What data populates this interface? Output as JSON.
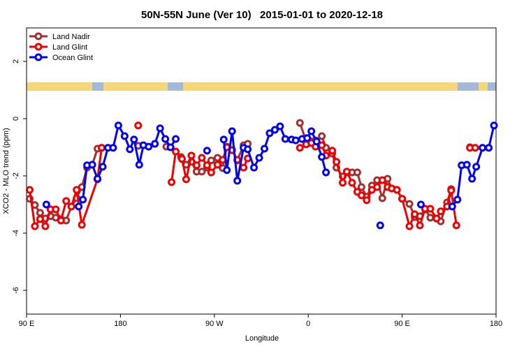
{
  "chart_data": {
    "type": "line",
    "title": "50N-55N June (Ver 10)   2015-01-01 to 2020-12-18",
    "x_label": "Longitude",
    "y_label": "XCO2 - MLO trend (ppm)",
    "xlim": [
      90,
      540
    ],
    "xticks": [
      {
        "value": 90,
        "label": "90 E"
      },
      180,
      {
        "value": 270,
        "label": "90 W"
      },
      {
        "value": 360,
        "label": "0"
      },
      {
        "value": 450,
        "label": "90 E"
      },
      180
    ],
    "ylim": [
      -6.83,
      3.17
    ],
    "yticks": [
      -6,
      -4,
      -2,
      0,
      2
    ],
    "legend": "top-left",
    "series": [
      {
        "name": "Land Nadir",
        "color": "#a0302f",
        "x": [
          93,
          98,
          103,
          108,
          113,
          118,
          123,
          128,
          133,
          138,
          143,
          148,
          153,
          158,
          162,
          null,
          197,
          null,
          224,
          null,
          238,
          243,
          248,
          253,
          258,
          263,
          267,
          273,
          278,
          282,
          287,
          292,
          298,
          302,
          null,
          352,
          357,
          363,
          367,
          373,
          377,
          383,
          387,
          393,
          397,
          402,
          407,
          411,
          416,
          421,
          426,
          431,
          436,
          440,
          445,
          450,
          457,
          462,
          467,
          472,
          477,
          483,
          487,
          493,
          497,
          null,
          515
        ],
        "values": [
          -2.8,
          -3.02,
          -3.29,
          -3.49,
          -3.41,
          -3.46,
          -3.51,
          -3.56,
          -3.07,
          -2.78,
          -2.39,
          -1.71,
          -1.61,
          -1.05,
          -1.02,
          null,
          -0.95,
          null,
          -0.98,
          null,
          -1.34,
          -1.61,
          -1.51,
          -1.85,
          -1.85,
          -1.71,
          -1.46,
          -1.37,
          -1.73,
          -0.98,
          -1.1,
          -1.46,
          -0.93,
          -0.88,
          null,
          -0.15,
          -0.68,
          -0.8,
          -0.76,
          -0.61,
          -1.02,
          -1.22,
          -1.71,
          -2.02,
          -1.88,
          -1.88,
          -1.88,
          -2.39,
          -2.73,
          -2.34,
          -2.15,
          -2.78,
          -2.1,
          -2.44,
          -2.49,
          -2.8,
          -2.98,
          -3.44,
          -3.41,
          -3.17,
          -3.46,
          -3.49,
          -3.59,
          -2.93,
          -2.46,
          null,
          -1.0
        ]
      },
      {
        "name": "Land Glint",
        "color": "#ee0000",
        "x": [
          93,
          98,
          103,
          108,
          113,
          118,
          123,
          128,
          133,
          138,
          143,
          158,
          162,
          null,
          197,
          null,
          229,
          233,
          239,
          243,
          248,
          253,
          258,
          263,
          267,
          273,
          278,
          282,
          287,
          292,
          298,
          302,
          null,
          352,
          358,
          363,
          367,
          373,
          377,
          383,
          387,
          393,
          397,
          402,
          407,
          411,
          416,
          421,
          426,
          431,
          436,
          440,
          445,
          450,
          457,
          462,
          467,
          472,
          477,
          483,
          487,
          493,
          497,
          502,
          null,
          515,
          520
        ],
        "values": [
          -2.49,
          -3.76,
          -3.51,
          -3.76,
          -3.17,
          -3.17,
          -3.56,
          -2.88,
          -3.07,
          -2.49,
          -3.71,
          -2.12,
          -1.02,
          null,
          -0.24,
          null,
          -2.22,
          -1.15,
          -1.41,
          -2.12,
          -1.29,
          -1.63,
          -1.37,
          -1.63,
          -1.88,
          -1.61,
          -1.44,
          -1.0,
          -1.1,
          -1.44,
          -1.71,
          -1.39,
          null,
          -1.02,
          -0.9,
          -0.85,
          -0.98,
          -0.93,
          -1.29,
          -1.12,
          -1.51,
          -2.24,
          -1.85,
          -2.24,
          -2.56,
          -2.68,
          -2.85,
          -2.49,
          -2.39,
          -2.15,
          -2.39,
          -2.44,
          -2.49,
          -2.8,
          -3.76,
          -3.34,
          -3.73,
          -3.15,
          -3.15,
          -3.49,
          -3.24,
          -3.07,
          -2.51,
          -3.73,
          null,
          -1.02,
          -1.02
        ]
      },
      {
        "name": "Ocean Glint",
        "color": "#0000ee",
        "x": [
          109,
          null,
          140,
          144,
          148,
          153,
          158,
          163,
          168,
          173,
          178,
          184,
          189,
          193,
          198,
          202,
          207,
          213,
          218,
          223,
          228,
          233,
          null,
          263,
          null,
          279,
          282,
          287,
          292,
          298,
          302,
          308,
          313,
          318,
          323,
          328,
          333,
          338,
          344,
          348,
          354,
          359,
          363,
          368,
          373,
          377,
          null,
          429,
          null,
          468,
          null,
          498,
          503,
          507,
          512,
          517,
          521,
          527,
          533,
          538
        ],
        "values": [
          -3.0,
          null,
          -3.07,
          -2.83,
          -1.63,
          -1.61,
          -2.1,
          -1.68,
          -1.02,
          -1.02,
          -0.24,
          -0.61,
          -1.07,
          -0.73,
          -1.61,
          -0.93,
          -0.98,
          -0.88,
          -0.34,
          -0.71,
          -1.0,
          -0.71,
          null,
          -1.12,
          null,
          -0.73,
          -1.8,
          -0.44,
          -2.17,
          -1.02,
          -1.07,
          -1.71,
          -1.37,
          -1.05,
          -0.51,
          -0.39,
          -0.27,
          -0.71,
          -0.73,
          -0.76,
          -0.71,
          -0.68,
          -0.44,
          -0.8,
          -1.34,
          -1.88,
          null,
          -3.73,
          null,
          -3.0,
          null,
          -3.07,
          -2.83,
          -1.63,
          -1.61,
          -2.1,
          -1.68,
          -1.02,
          -1.02,
          -0.24
        ]
      }
    ]
  }
}
